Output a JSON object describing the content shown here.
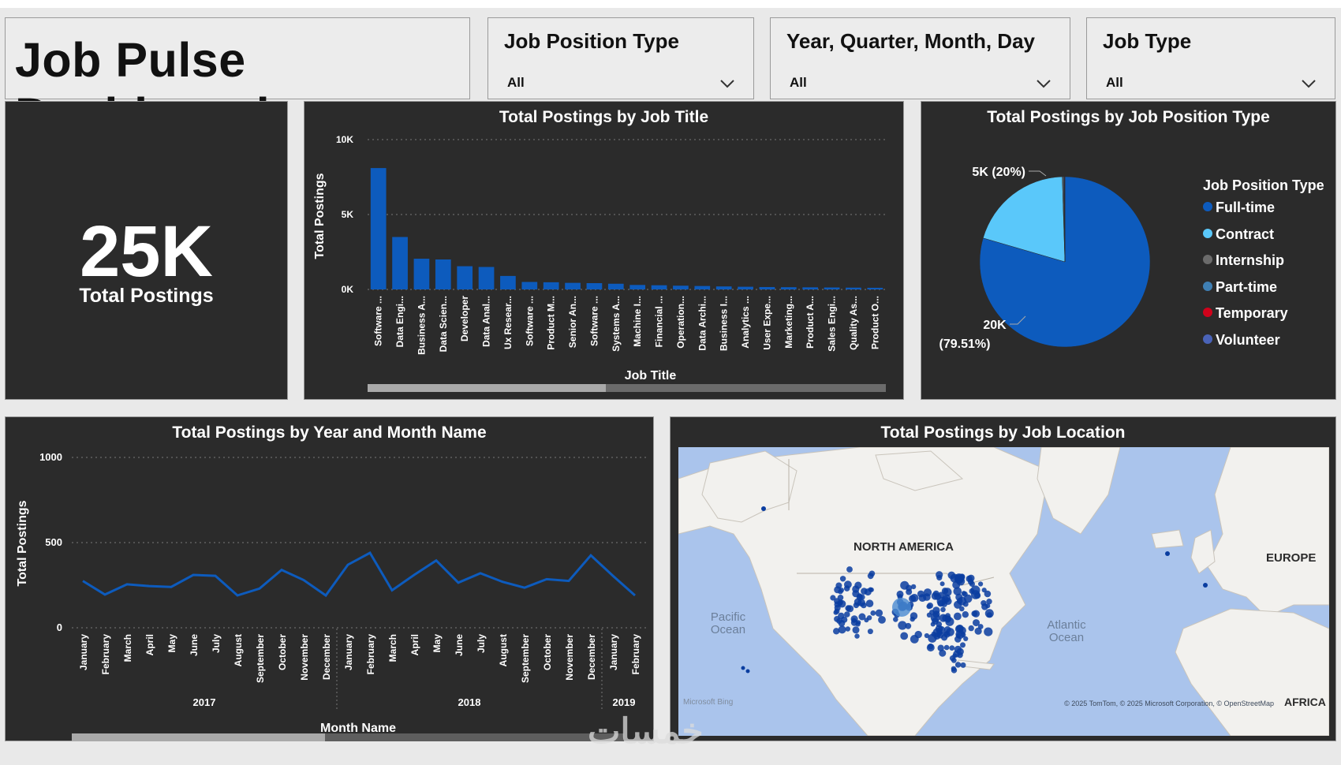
{
  "dashboard": {
    "title": "Job Pulse Dashboard"
  },
  "slicers": [
    {
      "label": "Job Position Type",
      "value": "All"
    },
    {
      "label": "Year, Quarter, Month, Day",
      "value": "All"
    },
    {
      "label": "Job Type",
      "value": "All"
    }
  ],
  "kpi": {
    "value": "25K",
    "label": "Total Postings"
  },
  "colors": {
    "primary": "#0d5bbd",
    "cyan": "#5ac8fa",
    "panel": "#2b2b2b",
    "ocean": "#aac4ec",
    "land": "#f2f1ee"
  },
  "chart_data": [
    {
      "type": "bar",
      "title": "Total Postings by Job Title",
      "xlabel": "Job Title",
      "ylabel": "Total Postings",
      "ylim": [
        0,
        10000
      ],
      "yticks": [
        "0K",
        "5K",
        "10K"
      ],
      "categories": [
        "Software ...",
        "Data Engi...",
        "Business A...",
        "Data Scien...",
        "Developer",
        "Data Anal...",
        "Ux Resear...",
        "Software ...",
        "Product M...",
        "Senior An...",
        "Software ...",
        "Systems A...",
        "Machine I...",
        "Financial ...",
        "Operation...",
        "Data Archi...",
        "Business I...",
        "Analytics ...",
        "User Expe...",
        "Marketing...",
        "Product A...",
        "Sales Engi...",
        "Quality As...",
        "Product O..."
      ],
      "values": [
        8100,
        3500,
        2050,
        2000,
        1550,
        1500,
        900,
        500,
        480,
        440,
        420,
        380,
        300,
        280,
        250,
        230,
        200,
        180,
        160,
        150,
        140,
        130,
        120,
        110
      ]
    },
    {
      "type": "pie",
      "title": "Total Postings by Job Position Type",
      "legend_title": "Job Position Type",
      "slices": [
        {
          "name": "Full-time",
          "value": 79.51,
          "color": "#0d5bbd",
          "label": "20K",
          "pct_label": "(79.51%)"
        },
        {
          "name": "Contract",
          "value": 20.0,
          "color": "#5ac8fa",
          "label": "5K (20%)"
        },
        {
          "name": "Internship",
          "value": 0.2,
          "color": "#6b6b6b"
        },
        {
          "name": "Part-time",
          "value": 0.15,
          "color": "#3f7fb3"
        },
        {
          "name": "Temporary",
          "value": 0.08,
          "color": "#d0021b"
        },
        {
          "name": "Volunteer",
          "value": 0.06,
          "color": "#4a63b8"
        }
      ]
    },
    {
      "type": "line",
      "title": "Total Postings by Year and Month Name",
      "xlabel": "Month Name",
      "ylabel": "Total Postings",
      "ylim": [
        0,
        1000
      ],
      "yticks": [
        "0",
        "500",
        "1000"
      ],
      "categories": [
        "January",
        "February",
        "March",
        "April",
        "May",
        "June",
        "July",
        "August",
        "September",
        "October",
        "November",
        "December",
        "January",
        "February",
        "March",
        "April",
        "May",
        "June",
        "July",
        "August",
        "September",
        "October",
        "November",
        "December",
        "January",
        "February"
      ],
      "values": [
        275,
        195,
        255,
        245,
        240,
        310,
        305,
        190,
        230,
        340,
        280,
        190,
        370,
        440,
        220,
        310,
        395,
        265,
        320,
        270,
        235,
        285,
        275,
        425,
        305,
        190
      ],
      "years": [
        {
          "label": "2017",
          "count": 12
        },
        {
          "label": "2018",
          "count": 12
        },
        {
          "label": "2019",
          "count": 2
        }
      ]
    }
  ],
  "map": {
    "title": "Total Postings by Job Location",
    "labels": {
      "north_america": "NORTH AMERICA",
      "europe": "EUROPE",
      "africa": "AFRICA",
      "pacific": "Pacific\nOcean",
      "atlantic": "Atlantic\nOcean"
    },
    "attribution": "© 2025 TomTom, © 2025 Microsoft Corporation, © OpenStreetMap",
    "provider": "Microsoft Bing"
  },
  "watermark": "خمسات"
}
